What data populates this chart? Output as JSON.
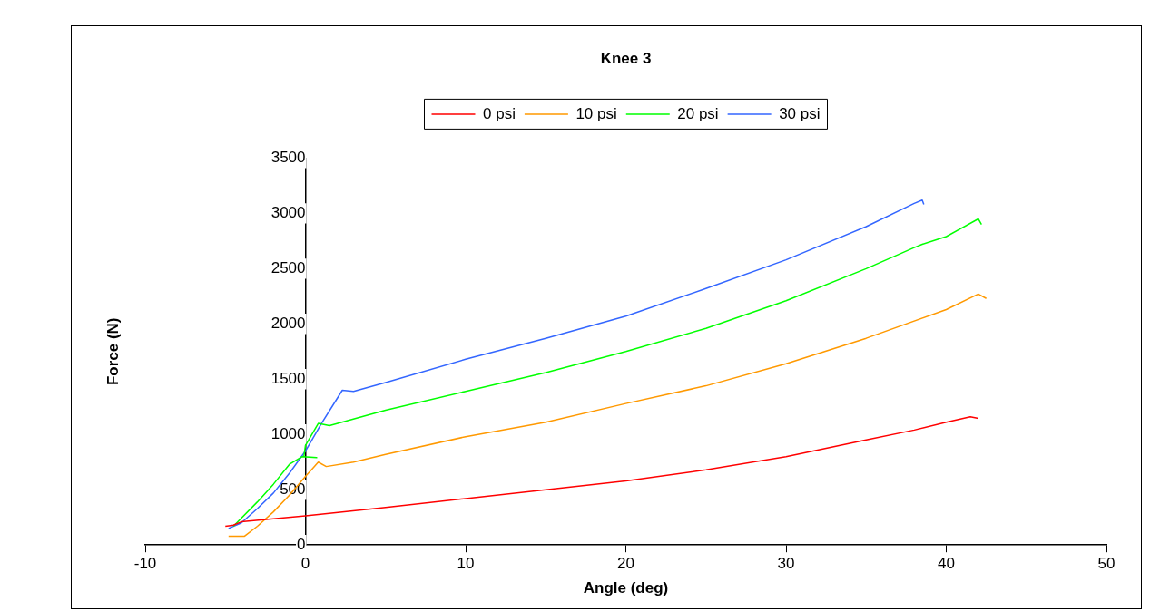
{
  "chart_data": {
    "type": "line",
    "title": "Knee 3",
    "xlabel": "Angle (deg)",
    "ylabel": "Force (N)",
    "xlim": [
      -10,
      50
    ],
    "xticks": [
      -10,
      0,
      10,
      20,
      30,
      40,
      50
    ],
    "ylim": [
      0,
      3500
    ],
    "yticks": [
      0,
      500,
      1000,
      1500,
      2000,
      2500,
      3000,
      3500
    ],
    "grid": false,
    "legend": "top",
    "marker": "none",
    "line_style": "solid",
    "series": [
      {
        "name": "0 psi",
        "color": "#ff0000",
        "x": [
          -5,
          -4.5,
          -4,
          0,
          5,
          10,
          15,
          20,
          25,
          30,
          35,
          38,
          40,
          41.5,
          42
        ],
        "values": [
          170,
          180,
          210,
          265,
          340,
          420,
          500,
          580,
          680,
          800,
          950,
          1040,
          1110,
          1160,
          1145
        ]
      },
      {
        "name": "10 psi",
        "color": "#ff9900",
        "x": [
          -4.8,
          -3.8,
          -3,
          -2,
          -1,
          0,
          0.5,
          0.8,
          1.3,
          3,
          5,
          10,
          15,
          20,
          25,
          30,
          35,
          40,
          42,
          42.5
        ],
        "values": [
          80,
          80,
          170,
          300,
          450,
          620,
          700,
          750,
          710,
          750,
          820,
          980,
          1110,
          1280,
          1440,
          1640,
          1870,
          2130,
          2270,
          2230
        ]
      },
      {
        "name": "20 psi",
        "color": "#00ff00",
        "x": [
          -4.5,
          -3,
          -2,
          -1,
          -0.2,
          0.7,
          -0.1,
          0,
          0.8,
          1.5,
          5,
          10,
          15,
          20,
          25,
          30,
          35,
          38,
          38.5,
          40,
          42,
          42.2
        ],
        "values": [
          170,
          390,
          550,
          730,
          800,
          790,
          800,
          900,
          1100,
          1080,
          1220,
          1390,
          1560,
          1750,
          1960,
          2210,
          2500,
          2690,
          2720,
          2790,
          2950,
          2900
        ]
      },
      {
        "name": "30 psi",
        "color": "#3366ff",
        "x": [
          -4.8,
          -4,
          -3,
          -2,
          -1,
          0,
          1,
          2,
          2.3,
          3,
          5,
          10,
          15,
          20,
          25,
          30,
          35,
          38,
          38.5,
          38.6
        ],
        "values": [
          150,
          200,
          330,
          470,
          650,
          850,
          1100,
          1330,
          1400,
          1390,
          1470,
          1680,
          1870,
          2070,
          2320,
          2580,
          2880,
          3090,
          3120,
          3080
        ]
      }
    ]
  }
}
